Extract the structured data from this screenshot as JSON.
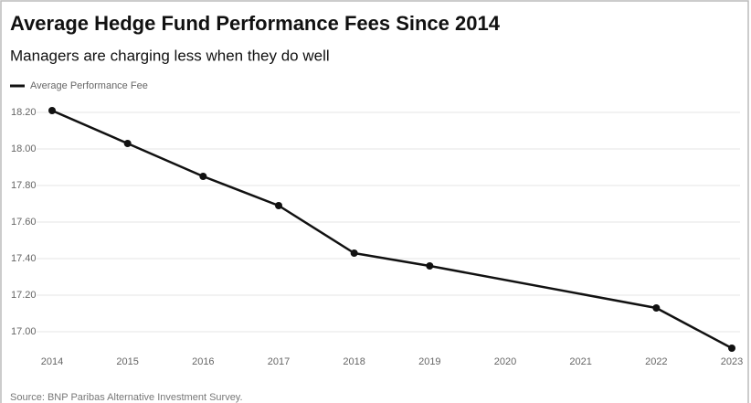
{
  "chart_data": {
    "type": "line",
    "title": "Average Hedge Fund Performance Fees Since 2014",
    "subtitle": "Managers are charging less when they do well",
    "source": "Source: BNP Paribas Alternative Investment Survey.",
    "x": [
      2014,
      2015,
      2016,
      2017,
      2018,
      2019,
      2022,
      2023
    ],
    "series": [
      {
        "name": "Average Performance Fee",
        "color": "#111111",
        "values": [
          18.21,
          18.03,
          17.85,
          17.69,
          17.43,
          17.36,
          17.13,
          16.91
        ]
      }
    ],
    "xlim": [
      2014,
      2023
    ],
    "xticks": [
      2014,
      2015,
      2016,
      2017,
      2018,
      2019,
      2020,
      2021,
      2022,
      2023
    ],
    "ylim": [
      16.9,
      18.3
    ],
    "yticks": [
      {
        "value": 17,
        "label": "17.00"
      },
      {
        "value": 17.2,
        "label": "17.20"
      },
      {
        "value": 17.4,
        "label": "17.40"
      },
      {
        "value": 17.6,
        "label": "17.60"
      },
      {
        "value": 17.8,
        "label": "17.80"
      },
      {
        "value": 18,
        "label": "18.00"
      },
      {
        "value": 18.2,
        "label": "18.20"
      }
    ],
    "grid": true,
    "legend": "top-left"
  }
}
